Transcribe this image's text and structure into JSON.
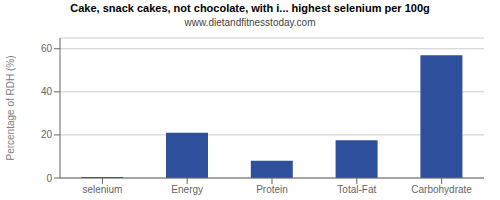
{
  "chart_data": {
    "type": "bar",
    "title": "Cake, snack cakes, not chocolate, with i... highest selenium per 100g",
    "subtitle": "www.dietandfitnesstoday.com",
    "categories": [
      "selenium",
      "Energy",
      "Protein",
      "Total-Fat",
      "Carbohydrate"
    ],
    "values": [
      0.5,
      21,
      8,
      17.5,
      57
    ],
    "color": "#2e4f9c",
    "ylabel": "Percentage of RDH (%)",
    "ylim": [
      0,
      65
    ],
    "yticks": [
      0,
      20,
      40,
      60
    ],
    "grid": true
  }
}
